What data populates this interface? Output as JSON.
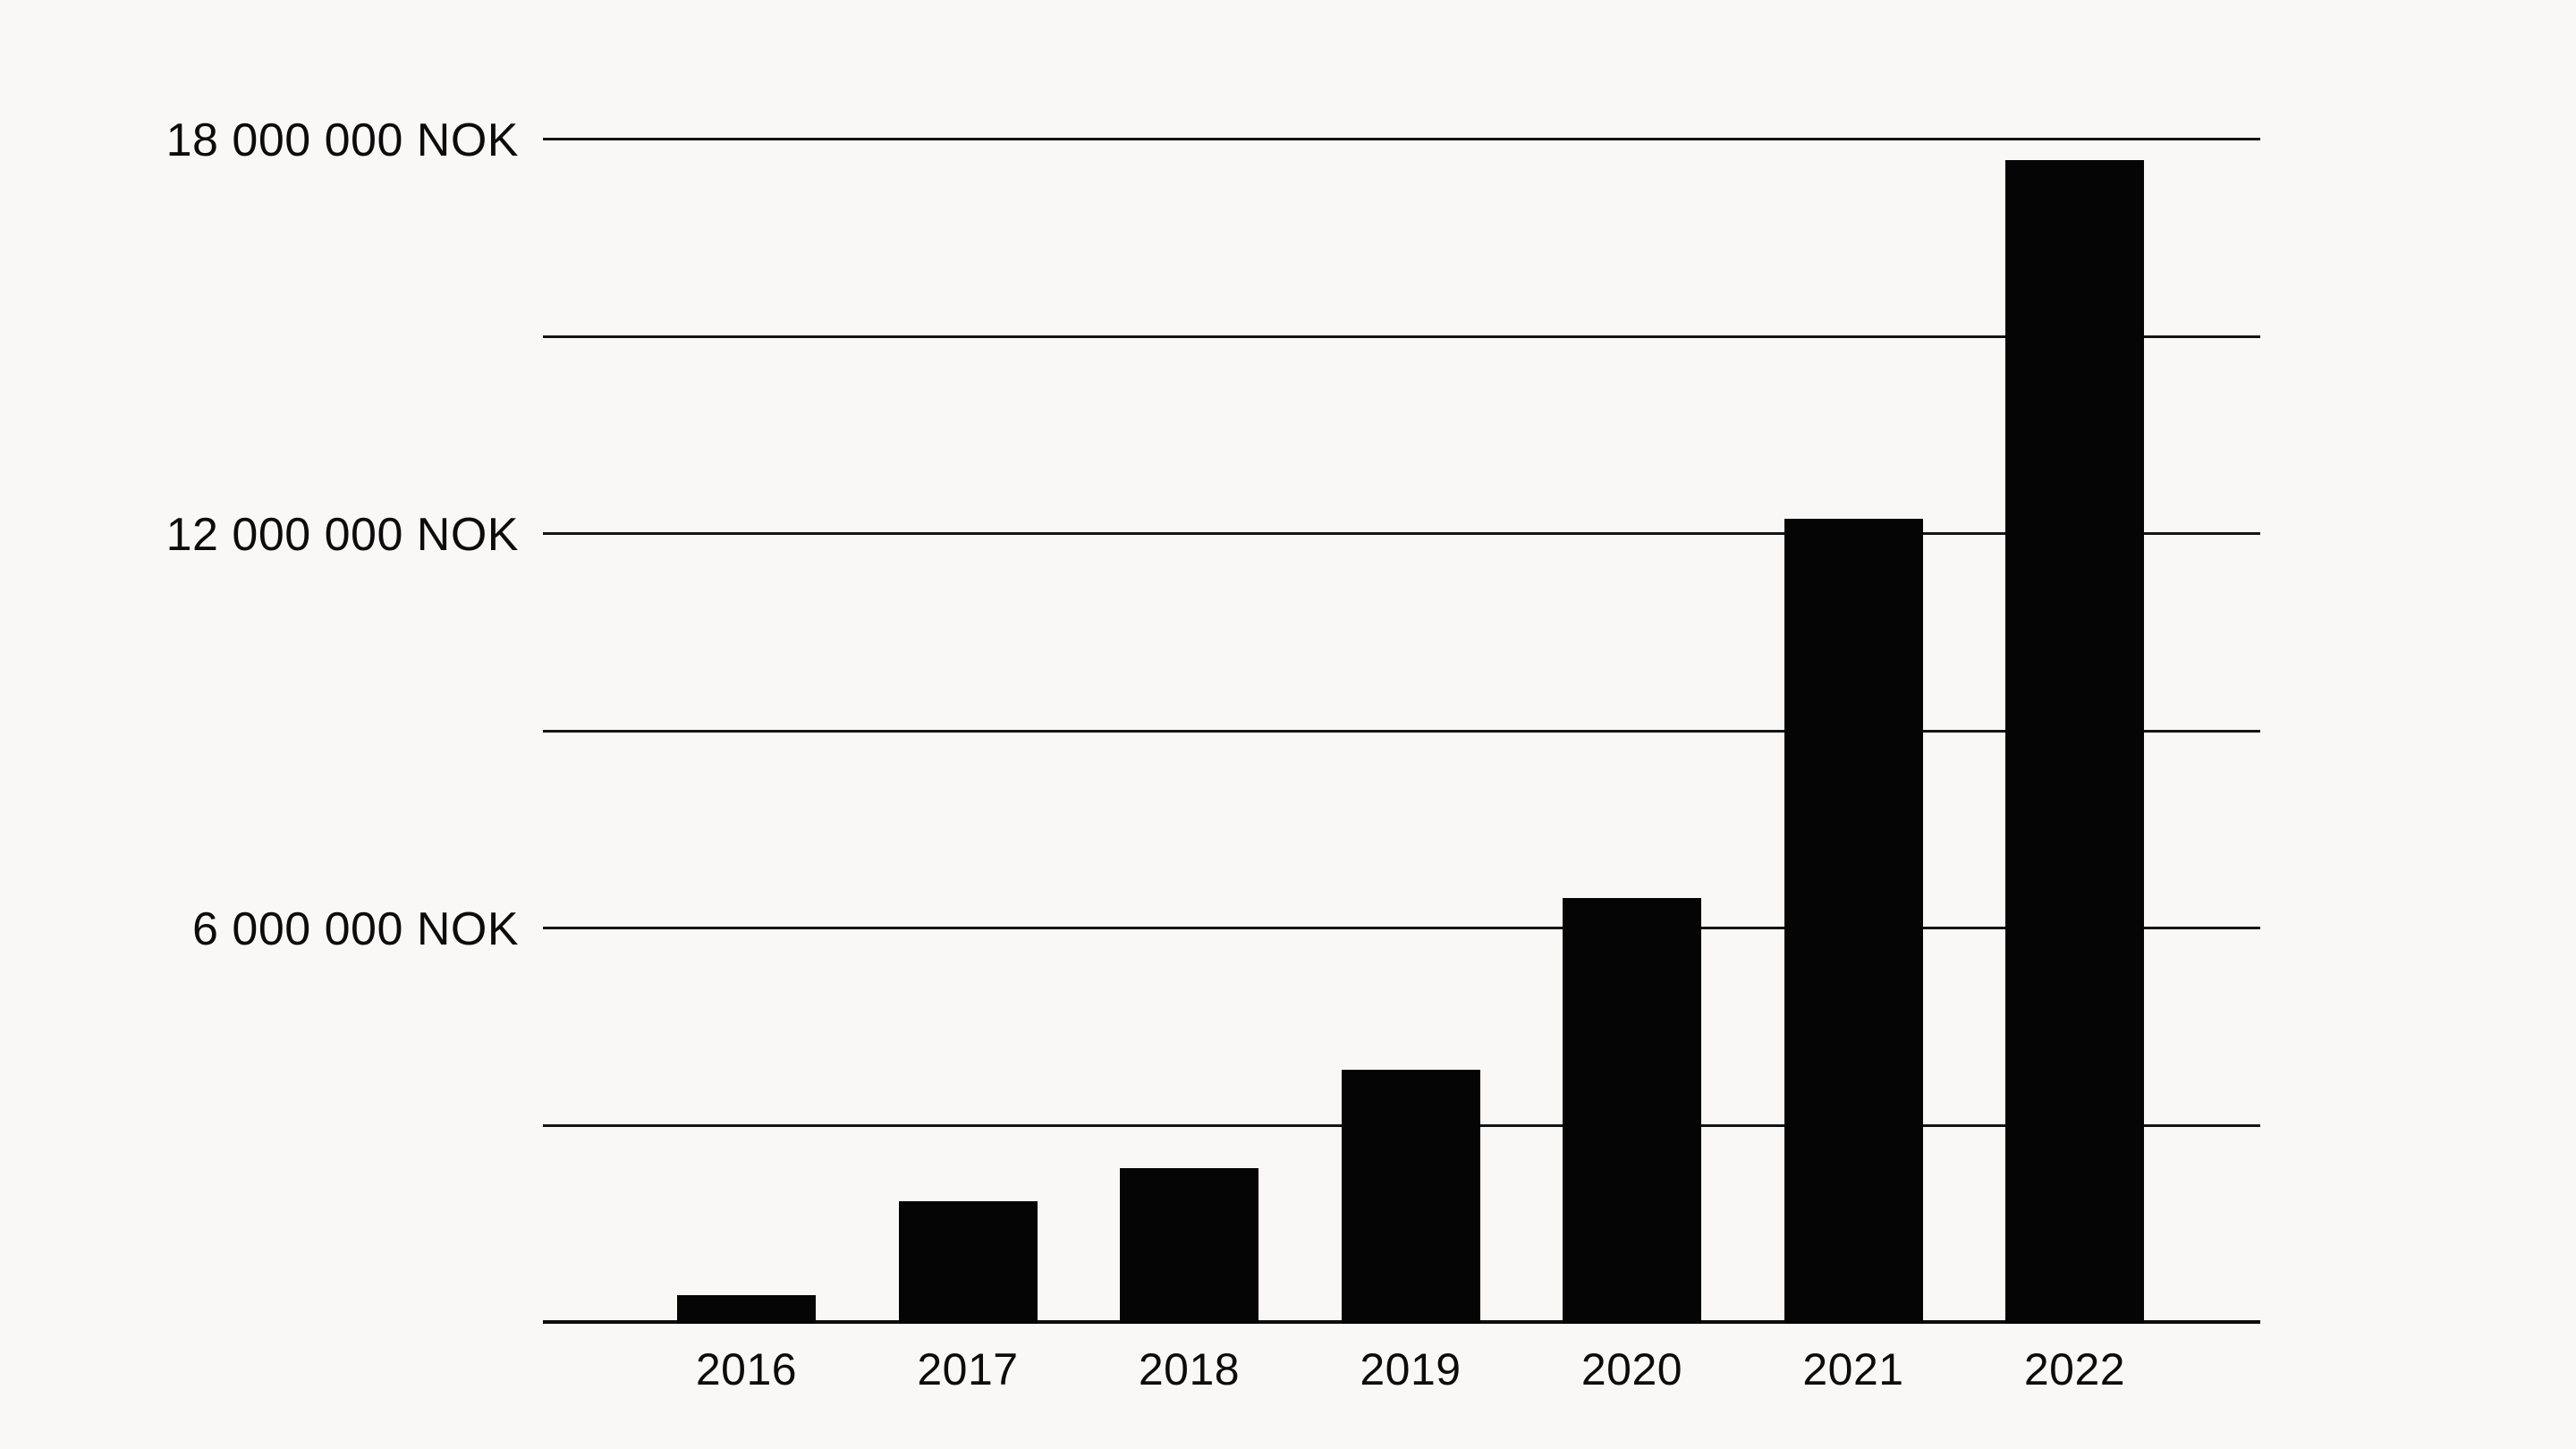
{
  "colors": {
    "background": "#faf8f6",
    "bar": "#050505",
    "gridline": "#141414",
    "text": "#0c0c0c"
  },
  "chart_data": {
    "type": "bar",
    "title": "",
    "xlabel": "",
    "ylabel": "",
    "categories": [
      "2016",
      "2017",
      "2018",
      "2019",
      "2020",
      "2021",
      "2022"
    ],
    "values": [
      430000,
      1860000,
      2370000,
      3860000,
      6470000,
      12250000,
      17700000
    ],
    "unit": "NOK",
    "ylim": [
      0,
      18000000
    ],
    "ytick_interval": 3000000,
    "gridline_count": 7,
    "grid": true,
    "legend": false,
    "ytick_labels": [
      {
        "value": 6000000,
        "label": "6 000 000 NOK"
      },
      {
        "value": 12000000,
        "label": "12 000 000 NOK"
      },
      {
        "value": 18000000,
        "label": "18 000 000 NOK"
      }
    ]
  }
}
